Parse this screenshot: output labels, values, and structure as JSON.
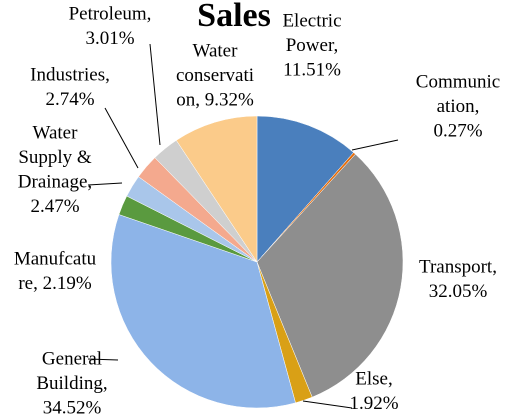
{
  "chart_data": {
    "type": "pie",
    "title": "Sales",
    "labels": [
      [
        "Electric",
        "Power,",
        "11.51%"
      ],
      [
        "Communic",
        "ation,",
        "0.27%"
      ],
      [
        "Transport,",
        "32.05%"
      ],
      [
        "Else,",
        "1.92%"
      ],
      [
        "General",
        "Building,",
        "34.52%"
      ],
      [
        "Manufcatu",
        "re, 2.19%"
      ],
      [
        "Water",
        "Supply &",
        "Drainage,",
        "2.47%"
      ],
      [
        "Industries,",
        "2.74%"
      ],
      [
        "Petroleum,",
        "3.01%"
      ],
      [
        "Water",
        "conservati",
        "on, 9.32%"
      ]
    ],
    "values": [
      11.51,
      0.27,
      32.05,
      1.92,
      34.52,
      2.19,
      2.47,
      2.74,
      3.01,
      9.32
    ],
    "colors": [
      "#4a7fbd",
      "#e46c0a",
      "#8e8e8e",
      "#d9a016",
      "#8db4e8",
      "#5a9a3f",
      "#a9c6ea",
      "#f4a98e",
      "#cfcfcf",
      "#fbcb8a"
    ]
  }
}
